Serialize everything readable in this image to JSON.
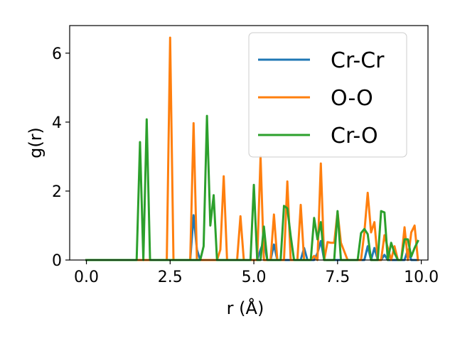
{
  "chart_data": {
    "type": "line",
    "xlabel": "r (Å)",
    "ylabel": "g(r)",
    "xlim": [
      -0.5,
      10.2
    ],
    "ylim": [
      0,
      6.8
    ],
    "xticks": [
      0.0,
      2.5,
      5.0,
      7.5,
      10.0
    ],
    "xtick_labels": [
      "0.0",
      "2.5",
      "5.0",
      "7.5",
      "10.0"
    ],
    "yticks": [
      0,
      2,
      4,
      6
    ],
    "ytick_labels": [
      "0",
      "2",
      "4",
      "6"
    ],
    "grid": false,
    "legend_position": "upper right",
    "series": [
      {
        "name": "Cr-Cr",
        "color": "#1f77b4",
        "x": [
          0,
          3.1,
          3.2,
          3.3,
          3.4,
          5.1,
          5.2,
          5.3,
          5.4,
          5.5,
          5.6,
          5.7,
          6.3,
          6.4,
          6.5,
          6.6,
          6.8,
          6.9,
          7.0,
          7.1,
          8.2,
          8.3,
          8.4,
          8.5,
          8.6,
          8.7,
          8.8,
          8.9,
          9.0,
          9.1,
          9.5,
          9.6,
          9.7,
          9.8,
          9.9
        ],
        "y": [
          0,
          0,
          1.3,
          0.3,
          0,
          0,
          0.3,
          0.55,
          0,
          0,
          0.45,
          0,
          0,
          0,
          0.35,
          0,
          0,
          0.2,
          0.55,
          0,
          0,
          0,
          0.4,
          0,
          0.35,
          0,
          0,
          0.15,
          0,
          0,
          0,
          0.3,
          0,
          0,
          0
        ]
      },
      {
        "name": "O-O",
        "color": "#ff7f0e",
        "x": [
          0,
          2.4,
          2.5,
          2.6,
          3.1,
          3.2,
          3.3,
          3.9,
          4.0,
          4.1,
          4.2,
          4.5,
          4.6,
          4.7,
          5.1,
          5.2,
          5.3,
          5.5,
          5.6,
          5.7,
          5.9,
          6.0,
          6.1,
          6.3,
          6.4,
          6.5,
          6.7,
          6.8,
          6.9,
          7.0,
          7.1,
          7.2,
          7.3,
          7.4,
          7.5,
          7.6,
          7.8,
          8.2,
          8.3,
          8.4,
          8.5,
          8.6,
          8.7,
          8.8,
          8.9,
          9.0,
          9.1,
          9.2,
          9.3,
          9.4,
          9.5,
          9.6,
          9.7,
          9.8,
          9.9
        ],
        "y": [
          0,
          0,
          6.45,
          0,
          0,
          3.97,
          0,
          0,
          0.3,
          2.43,
          0,
          0,
          1.27,
          0,
          0,
          3.0,
          0,
          0,
          1.32,
          0,
          0,
          2.28,
          0,
          0,
          1.6,
          0,
          0,
          0.12,
          0,
          2.8,
          0,
          0.52,
          0.5,
          0.5,
          1.4,
          0.5,
          0,
          0,
          0.8,
          1.95,
          0.8,
          1.1,
          0,
          0,
          0.72,
          0.35,
          0,
          0.4,
          0,
          0,
          0.95,
          0,
          0.8,
          1.0,
          0
        ]
      },
      {
        "name": "Cr-O",
        "color": "#2ca02c",
        "x": [
          0,
          1.5,
          1.6,
          1.7,
          1.8,
          1.9,
          3.4,
          3.5,
          3.6,
          3.7,
          3.8,
          3.9,
          4.9,
          5.0,
          5.1,
          5.2,
          5.3,
          5.4,
          5.8,
          5.9,
          6.0,
          6.1,
          6.2,
          6.6,
          6.7,
          6.8,
          6.9,
          7.0,
          7.1,
          7.4,
          7.5,
          7.6,
          7.7,
          8.1,
          8.2,
          8.3,
          8.4,
          8.5,
          8.7,
          8.8,
          8.9,
          9.0,
          9.1,
          9.2,
          9.3,
          9.4,
          9.5,
          9.6,
          9.7,
          9.8,
          9.9
        ],
        "y": [
          0,
          0,
          3.42,
          0,
          4.08,
          0,
          0,
          0.4,
          4.18,
          1.0,
          1.88,
          0,
          0,
          2.18,
          0,
          0,
          0.97,
          0,
          0,
          1.57,
          1.5,
          0.7,
          0,
          0,
          0,
          1.22,
          0.6,
          1.1,
          0,
          0,
          1.42,
          0,
          0,
          0,
          0.78,
          0.9,
          0.75,
          0,
          0,
          1.42,
          1.38,
          0,
          0.5,
          0.2,
          0,
          0,
          0.6,
          0.6,
          0.1,
          0.35,
          0.55
        ]
      }
    ]
  }
}
